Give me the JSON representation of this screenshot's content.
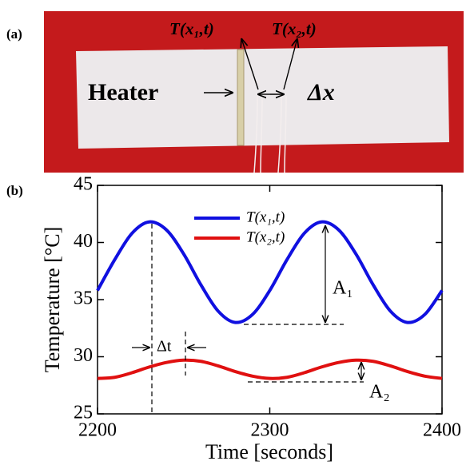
{
  "panel_a": {
    "label": "(a)",
    "t1": "T(x₁,t)",
    "t2": "T(x₂,t)",
    "heater": "Heater",
    "dx": "Δx"
  },
  "chart_data": {
    "type": "line",
    "panel_label": "(b)",
    "x_label": "Time [seconds]",
    "y_label": "Temperature [°C]",
    "x": [
      2200,
      2210,
      2220,
      2230,
      2240,
      2250,
      2260,
      2270,
      2280,
      2290,
      2300,
      2310,
      2320,
      2330,
      2340,
      2350,
      2360,
      2370,
      2380,
      2390,
      2400
    ],
    "series": [
      {
        "name": "T(x₁,t)",
        "color": "#1010e0",
        "values": [
          35.8,
          38.5,
          40.8,
          41.8,
          41.1,
          39.0,
          36.3,
          34.0,
          33.0,
          33.7,
          35.8,
          38.5,
          40.8,
          41.8,
          41.1,
          39.0,
          36.3,
          34.0,
          33.0,
          33.7,
          35.8
        ]
      },
      {
        "name": "T(x₂,t)",
        "color": "#e01010",
        "values": [
          28.1,
          28.2,
          28.6,
          29.1,
          29.5,
          29.7,
          29.6,
          29.2,
          28.7,
          28.3,
          28.1,
          28.2,
          28.6,
          29.1,
          29.5,
          29.7,
          29.6,
          29.2,
          28.7,
          28.3,
          28.1
        ]
      }
    ],
    "xlim": [
      2200,
      2400
    ],
    "xticks": [
      2200,
      2300,
      2400
    ],
    "ylim": [
      25,
      45
    ],
    "yticks": [
      25,
      30,
      35,
      40,
      45
    ],
    "annotations": {
      "a1": "A₁",
      "a2": "A₂",
      "dt": "Δt"
    }
  }
}
